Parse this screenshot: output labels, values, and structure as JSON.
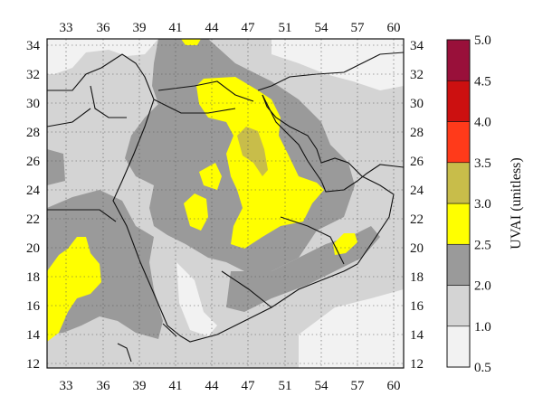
{
  "colorbar": {
    "title": "UVAI (unitless)",
    "levels": [
      "0.5",
      "1.0",
      "2.0",
      "2.5",
      "3.0",
      "3.5",
      "4.0",
      "4.5",
      "5.0"
    ],
    "bins": [
      {
        "from": 0.5,
        "to": 1.0,
        "color": "#f2f2f2"
      },
      {
        "from": 1.0,
        "to": 2.0,
        "color": "#d4d4d4"
      },
      {
        "from": 2.0,
        "to": 2.5,
        "color": "#9a9a9a"
      },
      {
        "from": 2.5,
        "to": 3.0,
        "color": "#ffff00"
      },
      {
        "from": 3.0,
        "to": 3.5,
        "color": "#c8bd4a"
      },
      {
        "from": 3.5,
        "to": 4.0,
        "color": "#ff3a1a"
      },
      {
        "from": 4.0,
        "to": 4.5,
        "color": "#cc1010"
      },
      {
        "from": 4.5,
        "to": 5.0,
        "color": "#99103a"
      }
    ]
  },
  "map": {
    "x_ticks": [
      "33",
      "36",
      "39",
      "41",
      "44",
      "47",
      "51",
      "54",
      "57",
      "60"
    ],
    "y_ticks": [
      "34",
      "32",
      "30",
      "28",
      "26",
      "24",
      "22",
      "20",
      "18",
      "16",
      "14",
      "12"
    ]
  }
}
